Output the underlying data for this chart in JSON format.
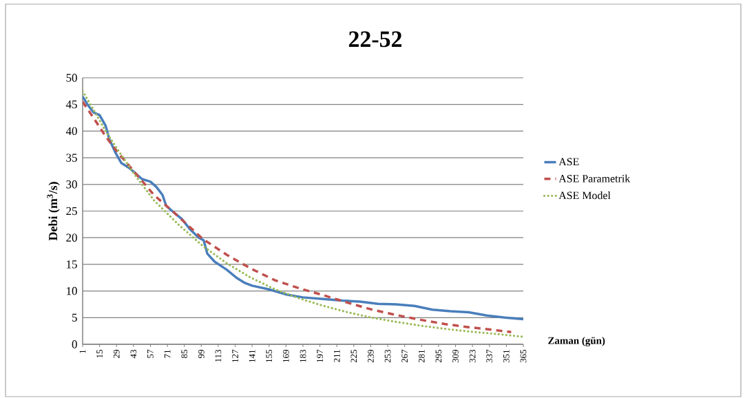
{
  "chart_data": {
    "type": "line",
    "title": "22-52",
    "xlabel": "Zaman (gün)",
    "ylabel": "Debi (m$^{3}$/s)",
    "xlim": [
      1,
      365
    ],
    "xticks": [
      1,
      15,
      29,
      43,
      57,
      71,
      85,
      99,
      113,
      127,
      141,
      155,
      169,
      183,
      197,
      211,
      225,
      239,
      253,
      267,
      281,
      295,
      309,
      323,
      337,
      351,
      365
    ],
    "ylim": [
      0,
      50
    ],
    "yticks": [
      0,
      5,
      10,
      15,
      20,
      25,
      30,
      35,
      40,
      45,
      50
    ],
    "grid": "y",
    "legend": "right",
    "series": [
      {
        "name": "ASE",
        "color": "#4a7ebb",
        "line_style": "solid",
        "x": [
          1,
          5,
          10,
          15,
          20,
          23,
          28,
          33,
          40,
          50,
          57,
          62,
          67,
          70,
          75,
          83,
          90,
          97,
          101,
          104,
          110,
          120,
          128,
          135,
          141,
          155,
          170,
          183,
          200,
          215,
          230,
          245,
          260,
          275,
          290,
          305,
          320,
          335,
          350,
          365
        ],
        "values": [
          46.5,
          45,
          43.5,
          43,
          41,
          38.5,
          36,
          34,
          33,
          31,
          30.5,
          29.5,
          28,
          26,
          25,
          23.5,
          21.5,
          20,
          19.5,
          17,
          15.5,
          14,
          12.5,
          11.5,
          11,
          10.3,
          9.3,
          8.8,
          8.5,
          8.2,
          8,
          7.6,
          7.5,
          7.2,
          6.5,
          6.2,
          6,
          5.4,
          5,
          4.7
        ]
      },
      {
        "name": "ASE Parametrik",
        "color": "#c0504d",
        "line_style": "dashed",
        "x": [
          1,
          10,
          20,
          30,
          45,
          60,
          80,
          100,
          120,
          140,
          160,
          180,
          200,
          220,
          240,
          260,
          280,
          300,
          320,
          340,
          355
        ],
        "values": [
          45.5,
          42.5,
          39,
          36,
          32,
          28,
          24,
          19.8,
          16.8,
          14.2,
          12,
          10.5,
          9.2,
          7.8,
          6.5,
          5.5,
          4.6,
          3.8,
          3.2,
          2.7,
          2.3
        ]
      },
      {
        "name": "ASE Model",
        "color": "#9bbb59",
        "line_style": "dotted",
        "x": [
          1,
          10,
          20,
          30,
          45,
          60,
          80,
          100,
          120,
          140,
          160,
          180,
          200,
          220,
          240,
          260,
          280,
          300,
          320,
          340,
          365
        ],
        "values": [
          47.5,
          44,
          40,
          36.5,
          31.5,
          27,
          22.5,
          18.5,
          15.2,
          12.5,
          10.3,
          8.6,
          7.2,
          6,
          5,
          4.2,
          3.5,
          2.9,
          2.4,
          2,
          1.4
        ]
      }
    ]
  }
}
